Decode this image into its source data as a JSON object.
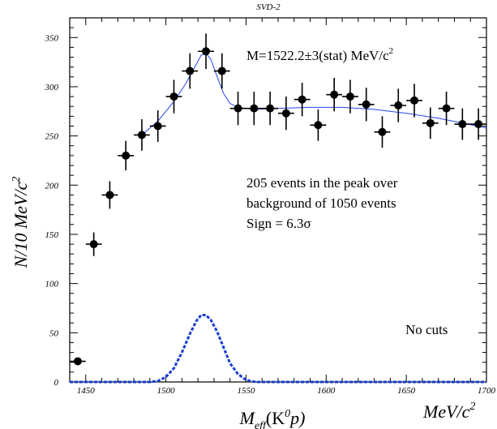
{
  "chart_data": {
    "type": "scatter",
    "title": "SVD-2",
    "xlabel": {
      "main": "M",
      "sub": "eff",
      "rest": "(K",
      "sup": "0",
      "tail": "p)"
    },
    "ylabel": {
      "main": "N/10 MeV/c",
      "sup": "2"
    },
    "x_unit": {
      "main": "MeV/c",
      "sup": "2"
    },
    "xlim": [
      1440,
      1700
    ],
    "ylim": [
      0,
      370
    ],
    "x_ticks": [
      1450,
      1500,
      1550,
      1600,
      1650,
      1700
    ],
    "y_ticks": [
      0,
      50,
      100,
      150,
      200,
      250,
      300,
      350
    ],
    "grid": false,
    "series": [
      {
        "name": "",
        "style": "points-with-errorbars",
        "color": "#000000",
        "points": [
          {
            "x": 1445,
            "y": 21,
            "err": 3
          },
          {
            "x": 1455,
            "y": 140,
            "err": 12
          },
          {
            "x": 1465,
            "y": 190,
            "err": 14
          },
          {
            "x": 1475,
            "y": 230,
            "err": 15
          },
          {
            "x": 1485,
            "y": 251,
            "err": 16
          },
          {
            "x": 1495,
            "y": 260,
            "err": 16
          },
          {
            "x": 1505,
            "y": 290,
            "err": 17
          },
          {
            "x": 1515,
            "y": 316,
            "err": 18
          },
          {
            "x": 1525,
            "y": 336,
            "err": 18
          },
          {
            "x": 1535,
            "y": 316,
            "err": 18
          },
          {
            "x": 1545,
            "y": 278,
            "err": 17
          },
          {
            "x": 1555,
            "y": 278,
            "err": 17
          },
          {
            "x": 1565,
            "y": 278,
            "err": 17
          },
          {
            "x": 1575,
            "y": 273,
            "err": 17
          },
          {
            "x": 1585,
            "y": 287,
            "err": 17
          },
          {
            "x": 1595,
            "y": 261,
            "err": 16
          },
          {
            "x": 1605,
            "y": 292,
            "err": 17
          },
          {
            "x": 1615,
            "y": 290,
            "err": 17
          },
          {
            "x": 1625,
            "y": 282,
            "err": 17
          },
          {
            "x": 1635,
            "y": 254,
            "err": 16
          },
          {
            "x": 1645,
            "y": 281,
            "err": 17
          },
          {
            "x": 1655,
            "y": 286,
            "err": 17
          },
          {
            "x": 1665,
            "y": 263,
            "err": 16
          },
          {
            "x": 1675,
            "y": 278,
            "err": 17
          },
          {
            "x": 1685,
            "y": 262,
            "err": 16
          },
          {
            "x": 1695,
            "y": 262,
            "err": 16
          }
        ]
      },
      {
        "name": "",
        "style": "solid-line",
        "color": "#2244ee",
        "points": [
          {
            "x": 1485,
            "y": 251
          },
          {
            "x": 1495,
            "y": 265
          },
          {
            "x": 1505,
            "y": 285
          },
          {
            "x": 1512,
            "y": 302
          },
          {
            "x": 1518,
            "y": 320
          },
          {
            "x": 1522,
            "y": 332
          },
          {
            "x": 1525,
            "y": 334
          },
          {
            "x": 1528,
            "y": 328
          },
          {
            "x": 1532,
            "y": 310
          },
          {
            "x": 1536,
            "y": 293
          },
          {
            "x": 1540,
            "y": 283
          },
          {
            "x": 1545,
            "y": 279
          },
          {
            "x": 1555,
            "y": 277
          },
          {
            "x": 1570,
            "y": 278
          },
          {
            "x": 1590,
            "y": 279
          },
          {
            "x": 1610,
            "y": 279
          },
          {
            "x": 1630,
            "y": 277
          },
          {
            "x": 1650,
            "y": 273
          },
          {
            "x": 1670,
            "y": 268
          },
          {
            "x": 1685,
            "y": 263
          },
          {
            "x": 1700,
            "y": 258
          }
        ]
      },
      {
        "name": "",
        "style": "dashed-line",
        "color": "#1a3fd6",
        "points": [
          {
            "x": 1440,
            "y": 0
          },
          {
            "x": 1490,
            "y": 0
          },
          {
            "x": 1495,
            "y": 1
          },
          {
            "x": 1500,
            "y": 5
          },
          {
            "x": 1505,
            "y": 14
          },
          {
            "x": 1510,
            "y": 30
          },
          {
            "x": 1515,
            "y": 49
          },
          {
            "x": 1519,
            "y": 62
          },
          {
            "x": 1522,
            "y": 68
          },
          {
            "x": 1525,
            "y": 68
          },
          {
            "x": 1528,
            "y": 63
          },
          {
            "x": 1532,
            "y": 51
          },
          {
            "x": 1536,
            "y": 35
          },
          {
            "x": 1540,
            "y": 19
          },
          {
            "x": 1545,
            "y": 8
          },
          {
            "x": 1550,
            "y": 2
          },
          {
            "x": 1556,
            "y": 0
          },
          {
            "x": 1700,
            "y": 0
          }
        ]
      }
    ],
    "annotations": {
      "mass": "M=1522.2±3(stat) MeV/c",
      "mass_sup": "2",
      "events_line1": "205 events in the peak over",
      "events_line2": "background of 1050 events",
      "significance": "Sign = 6.3σ",
      "cuts": "No cuts"
    }
  }
}
